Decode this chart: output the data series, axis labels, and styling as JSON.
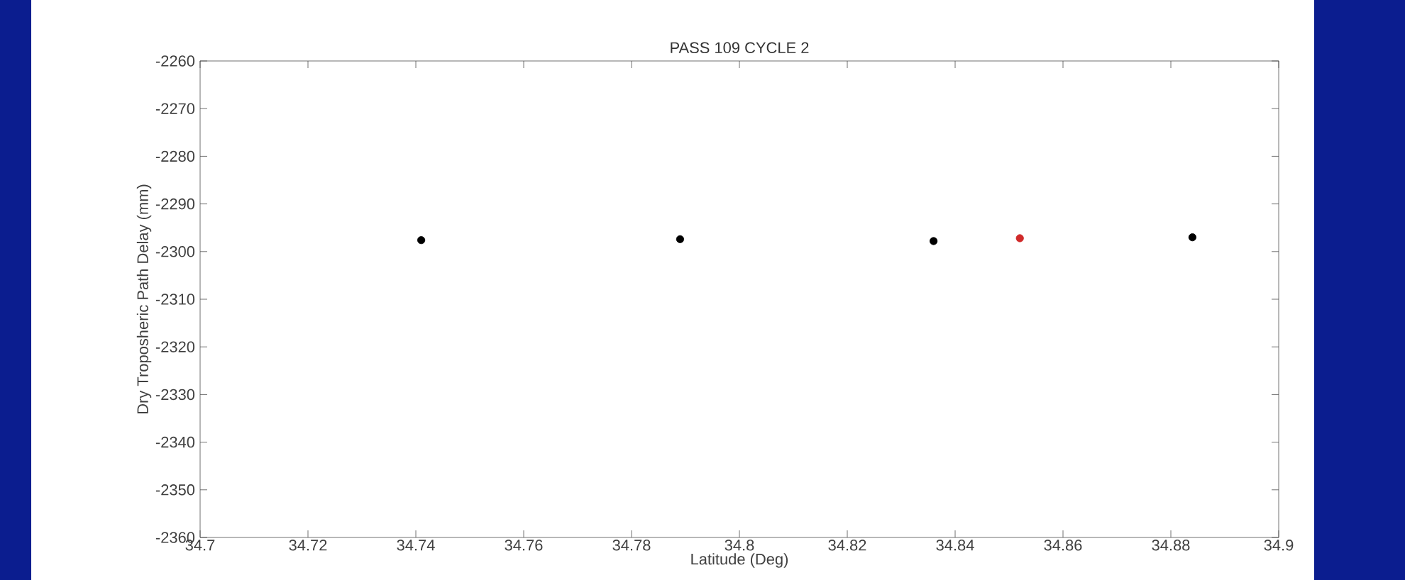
{
  "chart_data": {
    "type": "scatter",
    "title": "PASS 109 CYCLE 2",
    "xlabel": "Latitude (Deg)",
    "ylabel": "Dry Troposheric Path Delay (mm)",
    "series": [
      {
        "color": "#000000",
        "x": [
          34.741,
          34.789,
          34.836,
          34.884
        ],
        "values": [
          -2297.6,
          -2297.4,
          -2297.8,
          -2297.0
        ]
      },
      {
        "color": "#d02a2a",
        "x": [
          34.852
        ],
        "values": [
          -2297.2
        ]
      }
    ],
    "xlim": [
      34.7,
      34.9
    ],
    "xticks": [
      34.7,
      34.72,
      34.74,
      34.76,
      34.78,
      34.8,
      34.82,
      34.84,
      34.86,
      34.88,
      34.9
    ],
    "ylim": [
      -2360,
      -2260
    ],
    "yticks": [
      -2360,
      -2350,
      -2340,
      -2330,
      -2320,
      -2310,
      -2300,
      -2290,
      -2280,
      -2270,
      -2260
    ],
    "grid": false
  }
}
